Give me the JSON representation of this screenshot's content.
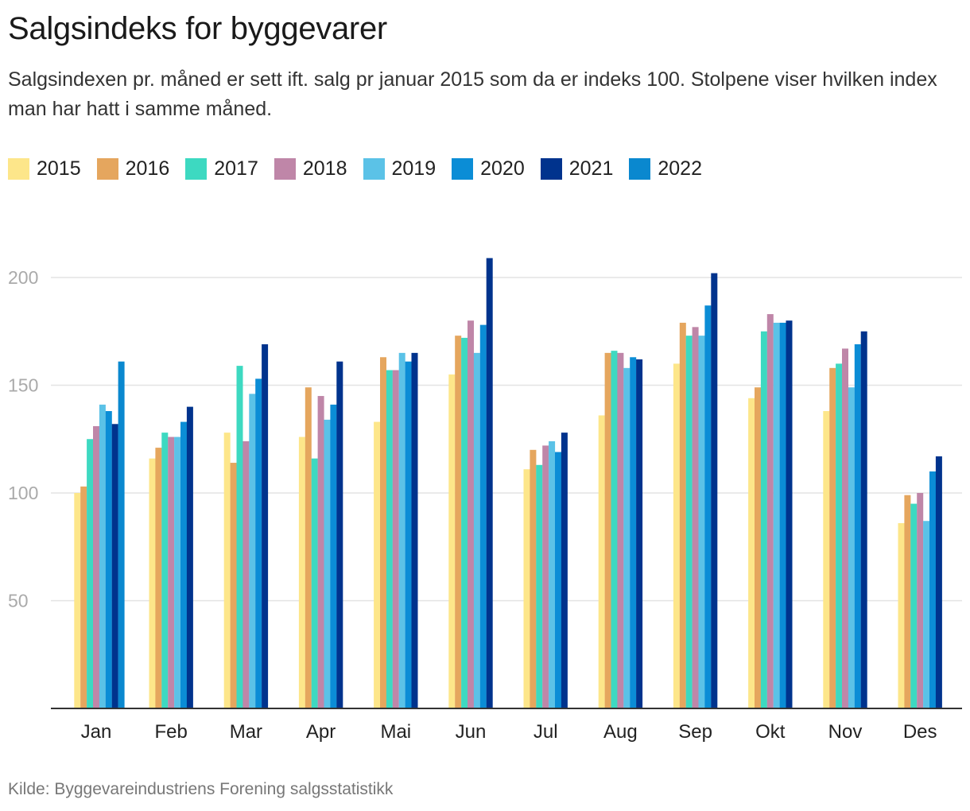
{
  "chart_data": {
    "type": "bar",
    "title": "Salgsindeks for byggevarer",
    "subtitle": "Salgsindexen pr. måned er sett ift. salg pr januar 2015 som da er indeks 100. Stolpene viser hvilken index man har hatt i samme måned.",
    "source": "Kilde: Byggevareindustriens Forening salgsstatistikk",
    "xlabel": "",
    "ylabel": "",
    "ylim": [
      0,
      200
    ],
    "yticks": [
      50,
      100,
      150,
      200
    ],
    "grid": true,
    "legend_position": "top-left",
    "categories": [
      "Jan",
      "Feb",
      "Mar",
      "Apr",
      "Mai",
      "Jun",
      "Jul",
      "Aug",
      "Sep",
      "Okt",
      "Nov",
      "Des"
    ],
    "series": [
      {
        "name": "2015",
        "color": "#fde68a",
        "values": [
          100,
          116,
          128,
          126,
          133,
          155,
          111,
          136,
          160,
          144,
          138,
          86
        ]
      },
      {
        "name": "2016",
        "color": "#e5a65e",
        "values": [
          103,
          121,
          114,
          149,
          163,
          173,
          120,
          165,
          179,
          149,
          158,
          99
        ]
      },
      {
        "name": "2017",
        "color": "#3dd9c1",
        "values": [
          125,
          128,
          159,
          116,
          157,
          172,
          113,
          166,
          173,
          175,
          160,
          95
        ]
      },
      {
        "name": "2018",
        "color": "#bf86a8",
        "values": [
          131,
          126,
          124,
          145,
          157,
          180,
          122,
          165,
          177,
          183,
          167,
          100
        ]
      },
      {
        "name": "2019",
        "color": "#5bc2e7",
        "values": [
          141,
          126,
          146,
          134,
          165,
          165,
          124,
          158,
          173,
          179,
          149,
          87
        ]
      },
      {
        "name": "2020",
        "color": "#0b8dd6",
        "values": [
          138,
          133,
          153,
          141,
          161,
          178,
          119,
          163,
          187,
          179,
          169,
          110
        ]
      },
      {
        "name": "2021",
        "color": "#00338d",
        "values": [
          132,
          140,
          169,
          161,
          165,
          209,
          128,
          162,
          202,
          180,
          175,
          117
        ]
      },
      {
        "name": "2022",
        "color": "#0a88cf",
        "values": [
          161,
          null,
          null,
          null,
          null,
          null,
          null,
          null,
          null,
          null,
          null,
          null
        ]
      }
    ]
  }
}
